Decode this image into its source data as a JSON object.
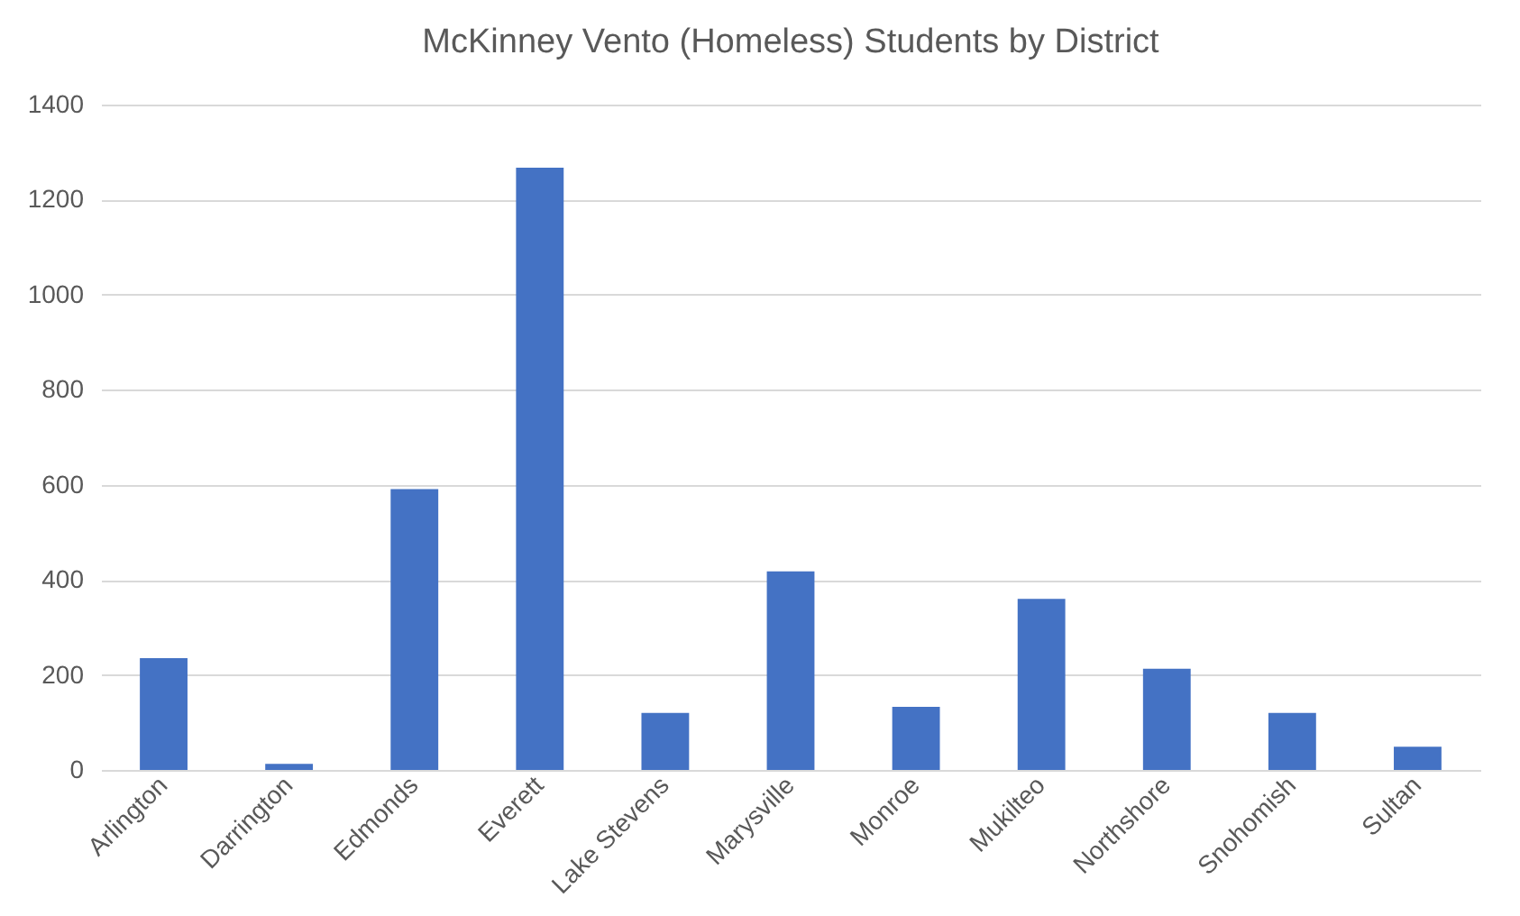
{
  "chart_data": {
    "type": "bar",
    "title": "McKinney Vento (Homeless) Students by District",
    "categories": [
      "Arlington",
      "Darrington",
      "Edmonds",
      "Everett",
      "Lake Stevens",
      "Marysville",
      "Monroe",
      "Mukilteo",
      "Northshore",
      "Snohomish",
      "Sultan"
    ],
    "values": [
      235,
      13,
      591,
      1267,
      120,
      418,
      133,
      360,
      213,
      120,
      49
    ],
    "color": "#4472c4",
    "ylim": [
      0,
      1400
    ],
    "yticks": [
      0,
      200,
      400,
      600,
      800,
      1000,
      1200,
      1400
    ],
    "grid": "y"
  }
}
